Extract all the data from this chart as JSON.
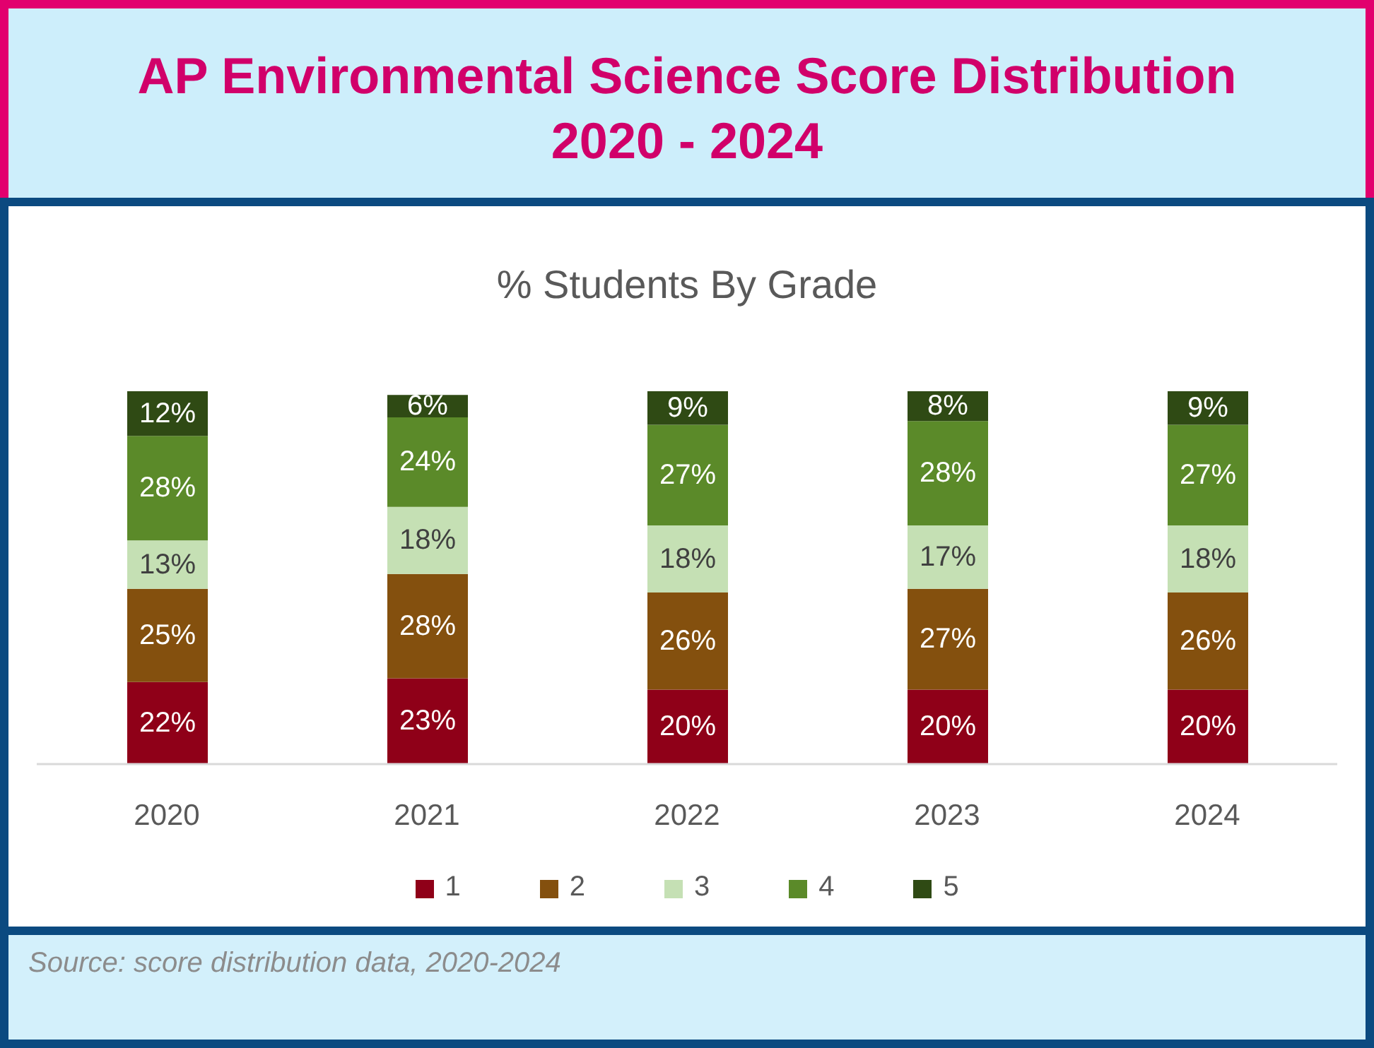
{
  "chart_data": {
    "type": "bar",
    "title": "AP Environmental Science Score Distribution\n2020 - 2024",
    "subtitle": "% Students By Grade",
    "categories": [
      "2020",
      "2021",
      "2022",
      "2023",
      "2024"
    ],
    "stacked": true,
    "series": [
      {
        "name": "1",
        "color": "#8f0018",
        "values": [
          22,
          23,
          20,
          20,
          20
        ],
        "value_labels": [
          "22%",
          "23%",
          "20%",
          "20%",
          "20%"
        ]
      },
      {
        "name": "2",
        "color": "#84500e",
        "values": [
          25,
          28,
          26,
          27,
          26
        ],
        "value_labels": [
          "25%",
          "28%",
          "26%",
          "27%",
          "26%"
        ]
      },
      {
        "name": "3",
        "color": "#c5e0b4",
        "values": [
          13,
          18,
          18,
          17,
          18
        ],
        "value_labels": [
          "13%",
          "18%",
          "18%",
          "17%",
          "18%"
        ]
      },
      {
        "name": "4",
        "color": "#5b8a29",
        "values": [
          28,
          24,
          27,
          28,
          27
        ],
        "value_labels": [
          "28%",
          "24%",
          "27%",
          "28%",
          "27%"
        ]
      },
      {
        "name": "5",
        "color": "#2f4a14",
        "values": [
          12,
          6,
          9,
          8,
          9
        ],
        "value_labels": [
          "12%",
          "6%",
          "9%",
          "8%",
          "9%"
        ]
      }
    ],
    "legend": "bottom",
    "annotations": [
      "Source: score distribution data, 2020-2024"
    ]
  }
}
